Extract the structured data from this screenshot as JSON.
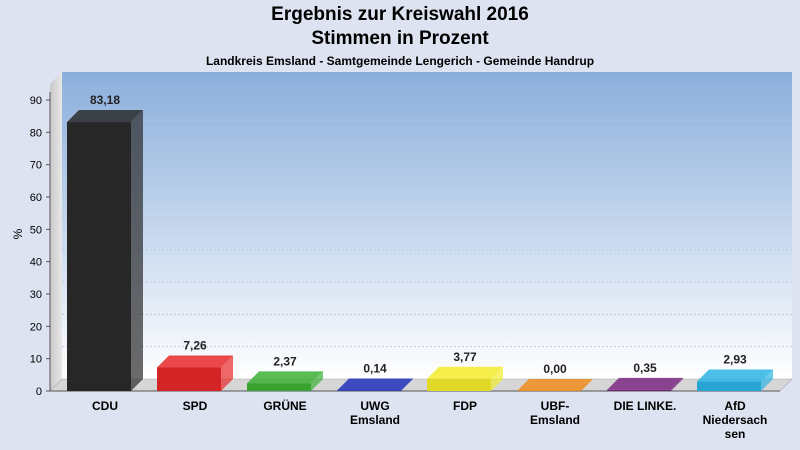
{
  "title_line1": "Ergebnis zur Kreiswahl 2016",
  "title_line2": "Stimmen in Prozent",
  "subtitle": "Landkreis Emsland - Samtgemeinde Lengerich - Gemeinde Handrup",
  "chart_data": {
    "type": "bar",
    "ylabel": "%",
    "ylim": [
      0,
      90
    ],
    "yticks": [
      0,
      10,
      20,
      30,
      40,
      50,
      60,
      70,
      80,
      90
    ],
    "grid": true,
    "categories": [
      "CDU",
      "SPD",
      "GRÜNE",
      "UWG Emsland",
      "FDP",
      "UBF-Emsland",
      "DIE LINKE.",
      "AfD Niedersachsen"
    ],
    "category_lines": [
      [
        "CDU"
      ],
      [
        "SPD"
      ],
      [
        "GRÜNE"
      ],
      [
        "UWG",
        "Emsland"
      ],
      [
        "FDP"
      ],
      [
        "UBF-",
        "Emsland"
      ],
      [
        "DIE LINKE."
      ],
      [
        "AfD",
        "Niedersach",
        "sen"
      ]
    ],
    "values": [
      83.18,
      7.26,
      2.37,
      0.14,
      3.77,
      0.0,
      0.35,
      2.93
    ],
    "value_labels": [
      "83,18",
      "7,26",
      "2,37",
      "0,14",
      "3,77",
      "0,00",
      "0,35",
      "2,93"
    ],
    "colors": [
      "#2b2b2b",
      "#e8282a",
      "#3cb034",
      "#2233bb",
      "#f4ec2c",
      "#f08c1c",
      "#7c2a82",
      "#2cb4e4"
    ]
  }
}
